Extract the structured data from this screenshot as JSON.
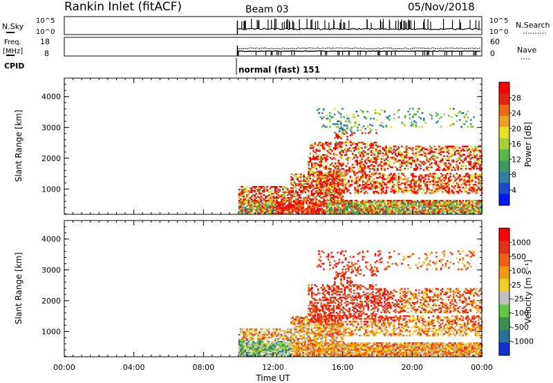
{
  "header": {
    "station": "Rankin Inlet (fitACF)",
    "beam": "Beam 03",
    "date": "05/Nov/2018"
  },
  "cpid_label": "CPID",
  "cpid_value": "normal (fast) 151",
  "noise_panel": {
    "left_label": "N.Sky",
    "right_label": "N.Search",
    "ticks": [
      "10^5",
      "10^0"
    ]
  },
  "freq_panel": {
    "left_label_1": "Freq.",
    "left_label_2": "[MHz]",
    "left_ticks": [
      "18",
      "8"
    ],
    "right_label": "Nave",
    "right_ticks": [
      "60",
      "0"
    ]
  },
  "chart_data": [
    {
      "type": "heatmap",
      "name": "power",
      "ylabel": "Slant Range [km]",
      "ylim": [
        180,
        4600
      ],
      "yticks": [
        1000,
        2000,
        3000,
        4000
      ],
      "xlim_hours": [
        0,
        24
      ],
      "xticks": [
        "00:00",
        "04:00",
        "08:00",
        "12:00",
        "16:00",
        "20:00",
        "00:00"
      ],
      "colorbar": {
        "label": "Power [dB]",
        "ticks": [
          "4",
          "8",
          "12",
          "16",
          "20",
          "24",
          "28"
        ],
        "colors": [
          "#0018ff",
          "#1a4ad0",
          "#2e7fa0",
          "#3a9a60",
          "#58b848",
          "#a8d030",
          "#e8e020",
          "#f0a020",
          "#ee6a10",
          "#e82010",
          "#ff0000"
        ]
      }
    },
    {
      "type": "heatmap",
      "name": "velocity",
      "ylabel": "Slant Range [km]",
      "ylim": [
        180,
        4600
      ],
      "yticks": [
        1000,
        2000,
        3000,
        4000
      ],
      "xlim_hours": [
        0,
        24
      ],
      "xticks": [
        "00:00",
        "04:00",
        "08:00",
        "12:00",
        "16:00",
        "20:00",
        "00:00"
      ],
      "xlabel": "Time UT",
      "colorbar": {
        "label": "Velocity [m s⁻¹]",
        "ticks": [
          "1000",
          "500",
          "100",
          "25",
          "-25",
          "-100",
          "-500",
          "-1000"
        ],
        "colors": [
          "#1030d0",
          "#2a70a0",
          "#3a9050",
          "#60c840",
          "#c0c0c0",
          "#f0d020",
          "#f09a10",
          "#ee6010",
          "#e83010",
          "#ff0000"
        ]
      }
    }
  ]
}
